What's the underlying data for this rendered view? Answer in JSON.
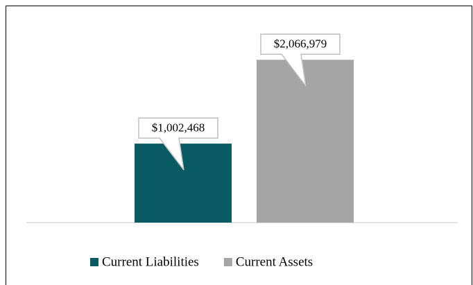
{
  "chart_data": {
    "type": "bar",
    "categories": [
      null
    ],
    "series": [
      {
        "name": "Current Liabilities",
        "color": "#085a63",
        "values": [
          1002468
        ],
        "value_labels": [
          "$1,002,468"
        ]
      },
      {
        "name": "Current Assets",
        "color": "#a5a5a5",
        "values": [
          2066979
        ],
        "value_labels": [
          "$2,066,979"
        ]
      }
    ],
    "ylim": [
      0,
      2500000
    ],
    "legend": "bottom"
  }
}
